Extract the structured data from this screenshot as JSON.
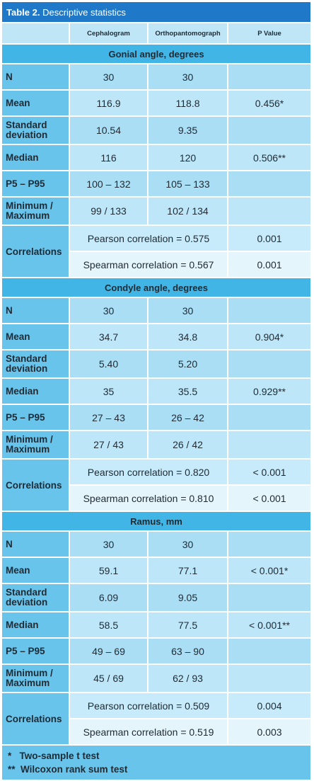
{
  "caption": {
    "label": "Table 2.",
    "title": "Descriptive statistics"
  },
  "columns": [
    "Cephalogram",
    "Orthopantomograph",
    "P Value"
  ],
  "sections": [
    {
      "title": "Gonial angle, degrees",
      "rows": [
        {
          "label": "N",
          "c1": "30",
          "c2": "30",
          "p": ""
        },
        {
          "label": "Mean",
          "c1": "116.9",
          "c2": "118.8",
          "p": "0.456*"
        },
        {
          "label": "Standard deviation",
          "c1": "10.54",
          "c2": "9.35",
          "p": ""
        },
        {
          "label": "Median",
          "c1": "116",
          "c2": "120",
          "p": "0.506**"
        },
        {
          "label": "P5 – P95",
          "c1": "100 – 132",
          "c2": "105 – 133",
          "p": ""
        },
        {
          "label": "Minimum / Maximum",
          "c1": "99 / 133",
          "c2": "102 / 134",
          "p": ""
        }
      ],
      "correlations": {
        "label": "Correlations",
        "pearson": "Pearson correlation = 0.575",
        "pearson_p": "0.001",
        "spearman": "Spearman correlation = 0.567",
        "spearman_p": "0.001"
      }
    },
    {
      "title": "Condyle angle, degrees",
      "rows": [
        {
          "label": "N",
          "c1": "30",
          "c2": "30",
          "p": ""
        },
        {
          "label": "Mean",
          "c1": "34.7",
          "c2": "34.8",
          "p": "0.904*"
        },
        {
          "label": "Standard deviation",
          "c1": "5.40",
          "c2": "5.20",
          "p": ""
        },
        {
          "label": "Median",
          "c1": "35",
          "c2": "35.5",
          "p": "0.929**"
        },
        {
          "label": "P5 – P95",
          "c1": "27 – 43",
          "c2": "26 – 42",
          "p": ""
        },
        {
          "label": "Minimum / Maximum",
          "c1": "27 / 43",
          "c2": "26 / 42",
          "p": ""
        }
      ],
      "correlations": {
        "label": "Correlations",
        "pearson": "Pearson correlation = 0.820",
        "pearson_p": "< 0.001",
        "spearman": "Spearman correlation = 0.810",
        "spearman_p": "< 0.001"
      }
    },
    {
      "title": "Ramus, mm",
      "rows": [
        {
          "label": "N",
          "c1": "30",
          "c2": "30",
          "p": ""
        },
        {
          "label": "Mean",
          "c1": "59.1",
          "c2": "77.1",
          "p": "< 0.001*"
        },
        {
          "label": "Standard deviation",
          "c1": "6.09",
          "c2": "9.05",
          "p": ""
        },
        {
          "label": "Median",
          "c1": "58.5",
          "c2": "77.5",
          "p": "< 0.001**"
        },
        {
          "label": "P5 – P95",
          "c1": "49 – 69",
          "c2": "63 – 90",
          "p": ""
        },
        {
          "label": "Minimum / Maximum",
          "c1": "45 / 69",
          "c2": "62 / 93",
          "p": ""
        }
      ],
      "correlations": {
        "label": "Correlations",
        "pearson": "Pearson correlation = 0.509",
        "pearson_p": "0.004",
        "spearman": "Spearman correlation = 0.519",
        "spearman_p": "0.003"
      }
    }
  ],
  "footnotes": [
    "*   Two-sample t test",
    "**  Wilcoxon rank sum test"
  ]
}
